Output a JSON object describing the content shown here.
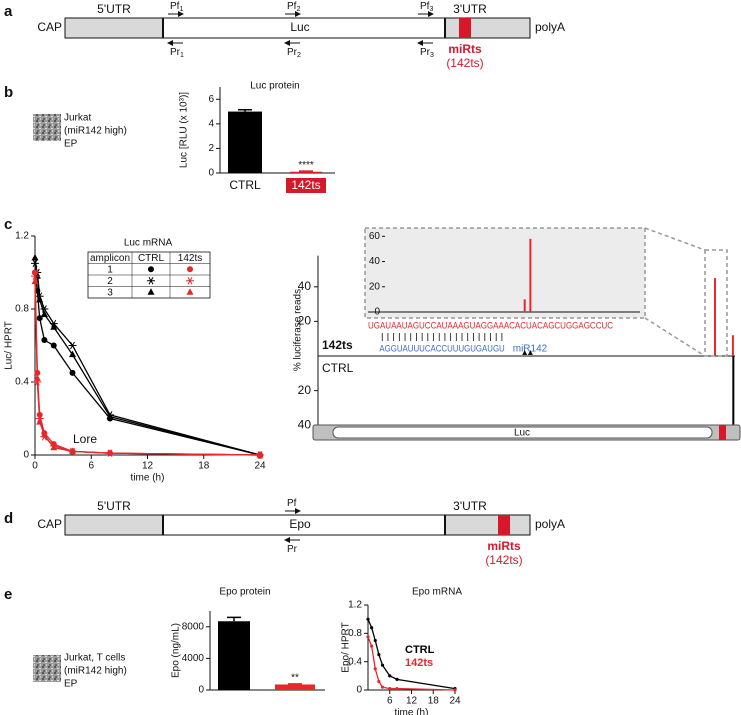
{
  "panel_a": {
    "label": "a",
    "cap": "CAP",
    "utr5": "5'UTR",
    "gene": "Luc",
    "utr3": "3'UTR",
    "polyA": "polyA",
    "mirts": "miRts",
    "mirts_name": "(142ts)",
    "forward_primers": [
      {
        "text": "Pf",
        "sub": "1"
      },
      {
        "text": "Pf",
        "sub": "2"
      },
      {
        "text": "Pf",
        "sub": "3"
      }
    ],
    "reverse_primers": [
      {
        "text": "Pr",
        "sub": "1"
      },
      {
        "text": "Pr",
        "sub": "2"
      },
      {
        "text": "Pr",
        "sub": "3"
      }
    ]
  },
  "panel_b": {
    "label": "b",
    "cell_text": [
      "Jurkat",
      "(miR142 high)",
      "EP"
    ]
  },
  "panel_c": {
    "label": "c",
    "gene": "Luc"
  },
  "panel_d": {
    "label": "d",
    "cap": "CAP",
    "utr5": "5'UTR",
    "gene": "Epo",
    "utr3": "3'UTR",
    "polyA": "polyA",
    "mirts": "miRts",
    "mirts_name": "(142ts)",
    "forward_primers": [
      {
        "text": "Pf"
      }
    ],
    "reverse_primers": [
      {
        "text": "Pr"
      }
    ]
  },
  "panel_e": {
    "label": "e",
    "cell_text": [
      "Jurkat, T cells",
      "(miR142 high)",
      "EP"
    ]
  },
  "chart_data": [
    {
      "type": "bar",
      "title": "Luc protein",
      "y_label": "Luc [RLU (x 10³)]",
      "categories": [
        "CTRL",
        "142ts"
      ],
      "values": [
        5.0,
        0.1
      ],
      "errors": [
        0.15,
        0.05
      ],
      "colors": [
        "#000000",
        "#d7182a"
      ],
      "label_box": [
        false,
        true
      ],
      "annotation": "****",
      "ylim": [
        0,
        7
      ],
      "yticks": [
        0,
        2,
        4,
        6
      ]
    },
    {
      "type": "line",
      "title": "Luc mRNA",
      "x_label": "time (h)",
      "y_label": "Luc/ HPRT",
      "annotation": "Lore",
      "x": [
        0,
        0.25,
        0.5,
        1,
        2,
        4,
        8,
        24
      ],
      "xlim": [
        0,
        24
      ],
      "xticks": [
        0,
        6,
        12,
        18,
        24
      ],
      "ylim": [
        0,
        1.2
      ],
      "yticks": [
        0,
        0.4,
        0.8,
        1.2
      ],
      "legend_table": {
        "header": [
          "amplicon",
          "CTRL",
          "142ts"
        ],
        "rows": [
          "1",
          "2",
          "3"
        ]
      },
      "series": [
        {
          "color": "#000000",
          "marker": "circle",
          "values": [
            1.0,
            0.9,
            0.75,
            0.63,
            0.6,
            0.45,
            0.2,
            0
          ]
        },
        {
          "color": "#000000",
          "marker": "star",
          "values": [
            1.05,
            1.0,
            0.87,
            0.8,
            0.72,
            0.6,
            0.22,
            0
          ]
        },
        {
          "color": "#000000",
          "marker": "triangle",
          "values": [
            1.08,
            0.98,
            0.85,
            0.77,
            0.7,
            0.55,
            0.21,
            0
          ]
        },
        {
          "color": "#e8272b",
          "marker": "circle",
          "values": [
            1.0,
            0.45,
            0.22,
            0.12,
            0.06,
            0.02,
            0.01,
            0
          ]
        },
        {
          "color": "#e8272b",
          "marker": "star",
          "values": [
            0.98,
            0.4,
            0.2,
            0.1,
            0.05,
            0.02,
            0.01,
            0
          ]
        },
        {
          "color": "#e8272b",
          "marker": "triangle",
          "values": [
            0.95,
            0.42,
            0.18,
            0.11,
            0.04,
            0.02,
            0.01,
            0
          ]
        }
      ]
    },
    {
      "type": "mirror-bar",
      "y_label": "% luciferase reads",
      "xlim": [
        0,
        100
      ],
      "ylim": [
        0,
        58
      ],
      "yticks": [
        20,
        40
      ],
      "series": [
        {
          "name": "142ts",
          "color": "#e8272b",
          "x": [
            95.2,
            99.5
          ],
          "values": [
            45,
            12
          ]
        },
        {
          "name": "CTRL",
          "color": "#000000",
          "x": [
            99.6
          ],
          "values": [
            40
          ]
        }
      ],
      "inset": {
        "ylim": [
          0,
          65
        ],
        "yticks": [
          0,
          20,
          40,
          60
        ],
        "color": "#e8272b",
        "x": [
          27,
          28
        ],
        "values": [
          10,
          58
        ],
        "target": "UGAUAAUAGUCCAUAAAGUAGGAAACACUACAGCUGGAGCCUC",
        "mirna": "AGGUAUUUCACCUUUGUGAUGU",
        "mirna_name": "miR142"
      }
    },
    {
      "type": "bar",
      "title": "Epo protein",
      "y_label": "Epo (ng/mL)",
      "categories": [
        null,
        null
      ],
      "values": [
        8700,
        700
      ],
      "errors": [
        500,
        80
      ],
      "colors": [
        "#000000",
        "#e8272b"
      ],
      "label_box": [
        false,
        false
      ],
      "annotation": "**",
      "ylim": [
        0,
        10000
      ],
      "yticks": [
        0,
        4000,
        8000
      ]
    },
    {
      "type": "line",
      "title": "Epo mRNA",
      "x_label": "time (h)",
      "y_label": "Epo/ HPRT",
      "x": [
        0,
        1,
        2,
        3,
        4,
        6,
        8,
        24
      ],
      "xlim": [
        0,
        24
      ],
      "xticks": [
        6,
        12,
        18,
        24
      ],
      "ylim": [
        0,
        1.2
      ],
      "yticks": [
        0,
        0.4,
        0.8,
        1.2
      ],
      "series": [
        {
          "name": "CTRL",
          "color": "#000000",
          "marker": "dot",
          "values": [
            1.0,
            0.88,
            0.7,
            0.5,
            0.35,
            0.2,
            0.15,
            0.02
          ]
        },
        {
          "name": "142ts",
          "color": "#e8272b",
          "marker": "dot",
          "values": [
            0.75,
            0.62,
            0.3,
            0.12,
            0.04,
            0.02,
            0.02,
            0.0
          ]
        }
      ]
    }
  ]
}
